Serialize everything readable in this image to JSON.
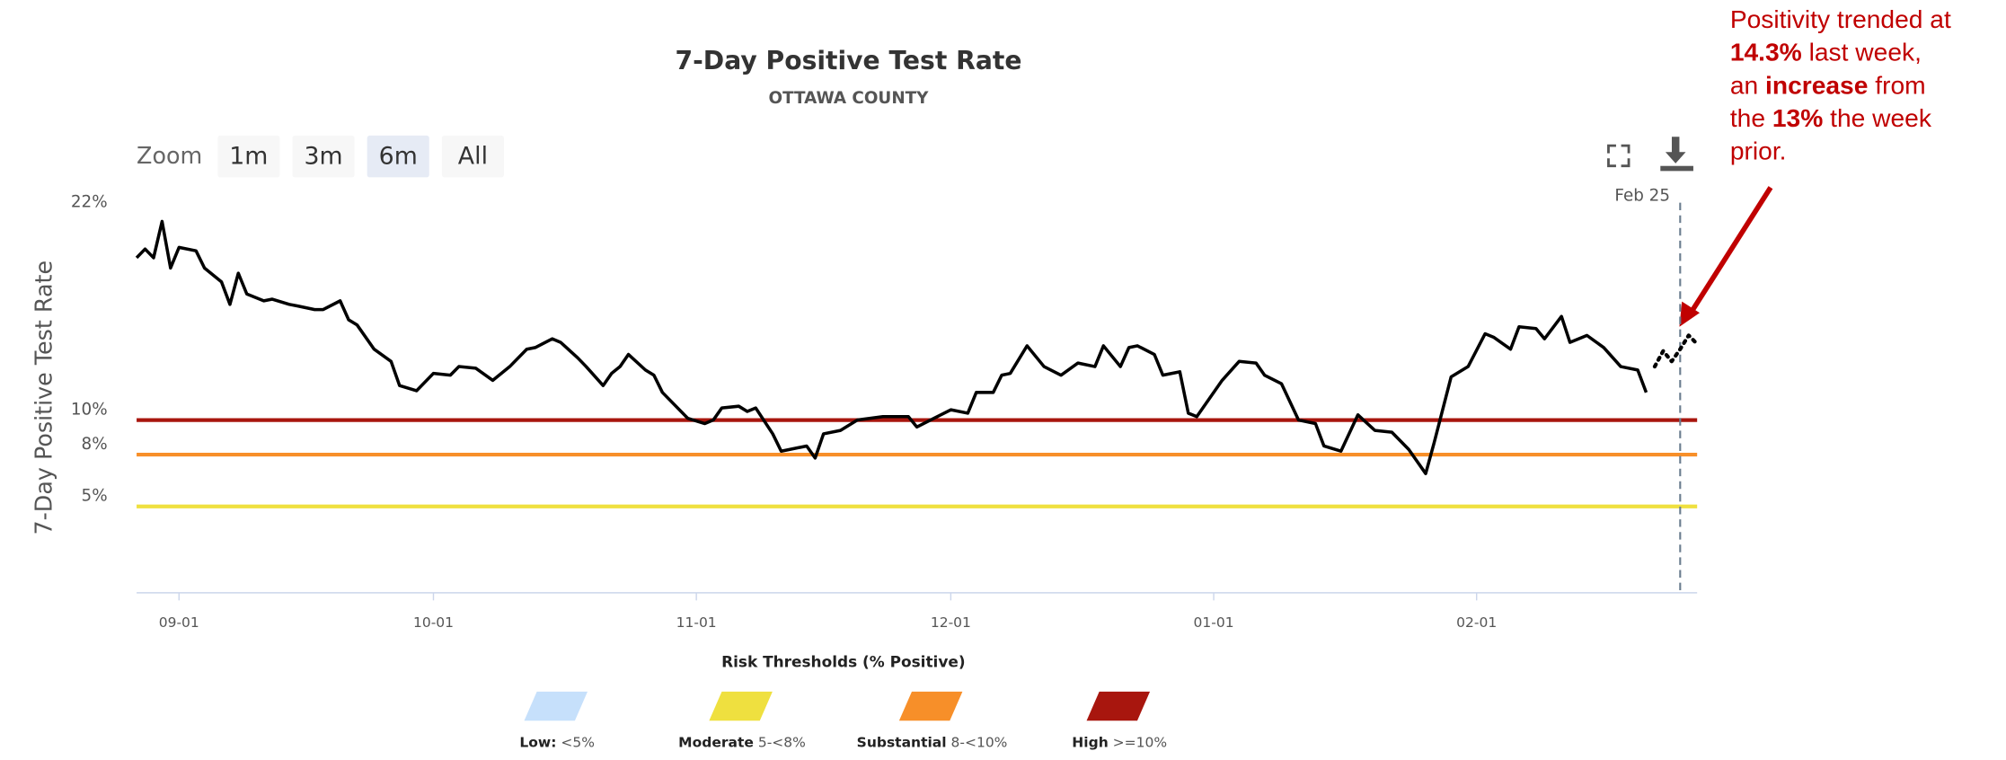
{
  "chart_data": {
    "type": "line",
    "title": "7-Day Positive Test Rate",
    "subtitle": "OTTAWA COUNTY",
    "y_label": "7-Day Positive Test Rate",
    "zoom": {
      "label": "Zoom",
      "buttons": [
        "1m",
        "3m",
        "6m",
        "All"
      ],
      "selected": "6m"
    },
    "xlim": [
      "08-27",
      "02-27"
    ],
    "xticks": [
      "09-01",
      "10-01",
      "11-01",
      "12-01",
      "01-01",
      "02-01"
    ],
    "ylim": [
      0,
      22
    ],
    "yticks": [
      {
        "value": 5,
        "label": "5%"
      },
      {
        "value": 8,
        "label": "8%"
      },
      {
        "value": 10,
        "label": "10%"
      },
      {
        "value": 22,
        "label": "22%"
      }
    ],
    "series": [
      {
        "color": "#000000",
        "style": "solid",
        "x": [
          "08-27",
          "08-28",
          "08-29",
          "08-30",
          "08-31",
          "09-01",
          "09-03",
          "09-04",
          "09-06",
          "09-07",
          "09-08",
          "09-09",
          "09-11",
          "09-12",
          "09-14",
          "09-15",
          "09-17",
          "09-18",
          "09-20",
          "09-21",
          "09-22",
          "09-24",
          "09-26",
          "09-27",
          "09-29",
          "10-01",
          "10-03",
          "10-04",
          "10-06",
          "10-08",
          "10-10",
          "10-12",
          "10-13",
          "10-15",
          "10-16",
          "10-18",
          "10-19",
          "10-21",
          "10-22",
          "10-23",
          "10-24",
          "10-26",
          "10-27",
          "10-28",
          "10-31",
          "11-02",
          "11-03",
          "11-04",
          "11-06",
          "11-07",
          "11-08",
          "11-10",
          "11-11",
          "11-14",
          "11-15",
          "11-16",
          "11-18",
          "11-20",
          "11-23",
          "11-26",
          "11-27",
          "11-29",
          "12-01",
          "12-03",
          "12-04",
          "12-06",
          "12-07",
          "12-08",
          "12-10",
          "12-12",
          "12-14",
          "12-16",
          "12-18",
          "12-19",
          "12-21",
          "12-22",
          "12-23",
          "12-25",
          "12-26",
          "12-28",
          "12-29",
          "12-30",
          "01-02",
          "01-04",
          "01-06",
          "01-07",
          "01-09",
          "01-11",
          "01-13",
          "01-14",
          "01-16",
          "01-18",
          "01-20",
          "01-22",
          "01-24",
          "01-26",
          "01-27",
          "01-29",
          "01-31",
          "02-02",
          "02-03",
          "02-05",
          "02-06",
          "02-08",
          "02-09",
          "02-11",
          "02-12",
          "02-14",
          "02-16",
          "02-18",
          "02-20",
          "02-21"
        ],
        "values": [
          19.4,
          19.9,
          19.4,
          21.5,
          18.8,
          20.0,
          19.8,
          18.8,
          18.0,
          16.7,
          18.5,
          17.3,
          16.9,
          17.0,
          16.7,
          16.6,
          16.4,
          16.4,
          16.9,
          15.8,
          15.5,
          14.1,
          13.4,
          12.0,
          11.7,
          12.7,
          12.6,
          13.1,
          13.0,
          12.3,
          13.1,
          14.1,
          14.2,
          14.7,
          14.5,
          13.6,
          13.1,
          12.0,
          12.7,
          13.1,
          13.8,
          12.9,
          12.6,
          11.6,
          10.1,
          9.8,
          10.0,
          10.7,
          10.8,
          10.5,
          10.7,
          9.2,
          8.2,
          8.5,
          7.8,
          9.2,
          9.4,
          10.0,
          10.2,
          10.2,
          9.6,
          10.1,
          10.6,
          10.4,
          11.6,
          11.6,
          12.6,
          12.7,
          14.3,
          13.1,
          12.6,
          13.3,
          13.1,
          14.3,
          13.1,
          14.2,
          14.3,
          13.8,
          12.6,
          12.8,
          10.4,
          10.2,
          12.3,
          13.4,
          13.3,
          12.6,
          12.1,
          10.0,
          9.8,
          8.5,
          8.2,
          10.3,
          9.4,
          9.3,
          8.3,
          6.9,
          8.7,
          12.5,
          13.1,
          15.0,
          14.8,
          14.1,
          15.4,
          15.3,
          14.7,
          16.0,
          14.5,
          14.9,
          14.2,
          13.1,
          12.9,
          11.6
        ]
      },
      {
        "color": "#000000",
        "style": "dotted",
        "x": [
          "02-22",
          "02-23",
          "02-24",
          "02-25",
          "02-26",
          "02-27"
        ],
        "values": [
          13.1,
          14.0,
          13.4,
          14.1,
          14.9,
          14.4
        ]
      }
    ],
    "marker": {
      "x": "02-25",
      "label": "Feb 25",
      "color": "#6b7d8f"
    },
    "thresholds": [
      {
        "value": 10,
        "color": "#a8160e"
      },
      {
        "value": 8,
        "color": "#f78f29"
      },
      {
        "value": 5,
        "color": "#efe03f"
      }
    ],
    "legend": {
      "title": "Risk Thresholds (% Positive)",
      "items": [
        {
          "name": "Low:",
          "range": "<5%",
          "color": "#c6e0fb"
        },
        {
          "name": "Moderate",
          "range": "5-<8%",
          "color": "#efe03f"
        },
        {
          "name": "Substantial",
          "range": "8-<10%",
          "color": "#f78f29"
        },
        {
          "name": "High",
          "range": ">=10%",
          "color": "#a8160e"
        }
      ]
    },
    "annotation": {
      "color": "#c00000",
      "lines": [
        [
          {
            "text": "Positivity trended at",
            "bold": false
          }
        ],
        [
          {
            "text": "14.3%",
            "bold": true
          },
          {
            "text": " last week,",
            "bold": false
          }
        ],
        [
          {
            "text": "an ",
            "bold": false
          },
          {
            "text": "increase",
            "bold": true
          },
          {
            "text": " from",
            "bold": false
          }
        ],
        [
          {
            "text": "the ",
            "bold": false
          },
          {
            "text": "13%",
            "bold": true
          },
          {
            "text": " the week",
            "bold": false
          }
        ],
        [
          {
            "text": "prior.",
            "bold": false
          }
        ]
      ]
    }
  }
}
